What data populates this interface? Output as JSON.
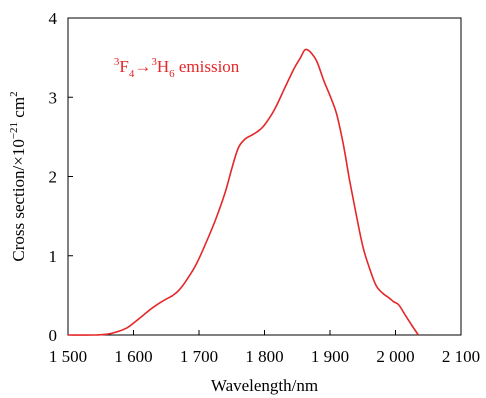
{
  "chart_data": {
    "type": "line",
    "xlabel": "Wavelength/nm",
    "ylabel": {
      "pre": "Cross section/×10",
      "exp": "−21",
      "mid": " cm",
      "exp2": "2"
    },
    "xlim": [
      1500,
      2100
    ],
    "ylim": [
      0,
      4
    ],
    "x_ticks": [
      1500,
      1600,
      1700,
      1800,
      1900,
      2000,
      2100
    ],
    "x_tick_labels": [
      "1 500",
      "1 600",
      "1 700",
      "1 800",
      "1 900",
      "2 000",
      "2 100"
    ],
    "y_ticks": [
      0,
      1,
      2,
      3,
      4
    ],
    "y_tick_labels": [
      "0",
      "1",
      "2",
      "3",
      "4"
    ],
    "grid": false,
    "series": [
      {
        "color": "#e4282a",
        "x": [
          1500,
          1540,
          1560,
          1575,
          1590,
          1600,
          1615,
          1630,
          1645,
          1660,
          1670,
          1680,
          1695,
          1710,
          1725,
          1740,
          1750,
          1760,
          1770,
          1780,
          1790,
          1800,
          1815,
          1830,
          1845,
          1855,
          1862,
          1870,
          1880,
          1890,
          1900,
          1910,
          1920,
          1930,
          1940,
          1950,
          1960,
          1970,
          1980,
          1990,
          1997,
          2005,
          2015,
          2025,
          2035
        ],
        "y": [
          0,
          0,
          0.01,
          0.04,
          0.09,
          0.15,
          0.25,
          0.35,
          0.43,
          0.5,
          0.57,
          0.68,
          0.88,
          1.15,
          1.45,
          1.8,
          2.1,
          2.36,
          2.47,
          2.52,
          2.57,
          2.65,
          2.84,
          3.1,
          3.36,
          3.5,
          3.6,
          3.57,
          3.45,
          3.22,
          3.02,
          2.79,
          2.42,
          1.95,
          1.52,
          1.12,
          0.85,
          0.63,
          0.53,
          0.47,
          0.42,
          0.38,
          0.25,
          0.12,
          0
        ]
      }
    ],
    "annotation": {
      "parts": [
        {
          "text": "3",
          "sup": true
        },
        {
          "text": "F",
          "sup": false
        },
        {
          "text": "4",
          "sub": true
        },
        {
          "text": "→",
          "sup": false
        },
        {
          "text": "3",
          "sup": true
        },
        {
          "text": "H",
          "sup": false
        },
        {
          "text": "6",
          "sub": true
        },
        {
          "text": " emission",
          "sup": false
        }
      ],
      "x": 1570,
      "y": 3.32
    }
  }
}
